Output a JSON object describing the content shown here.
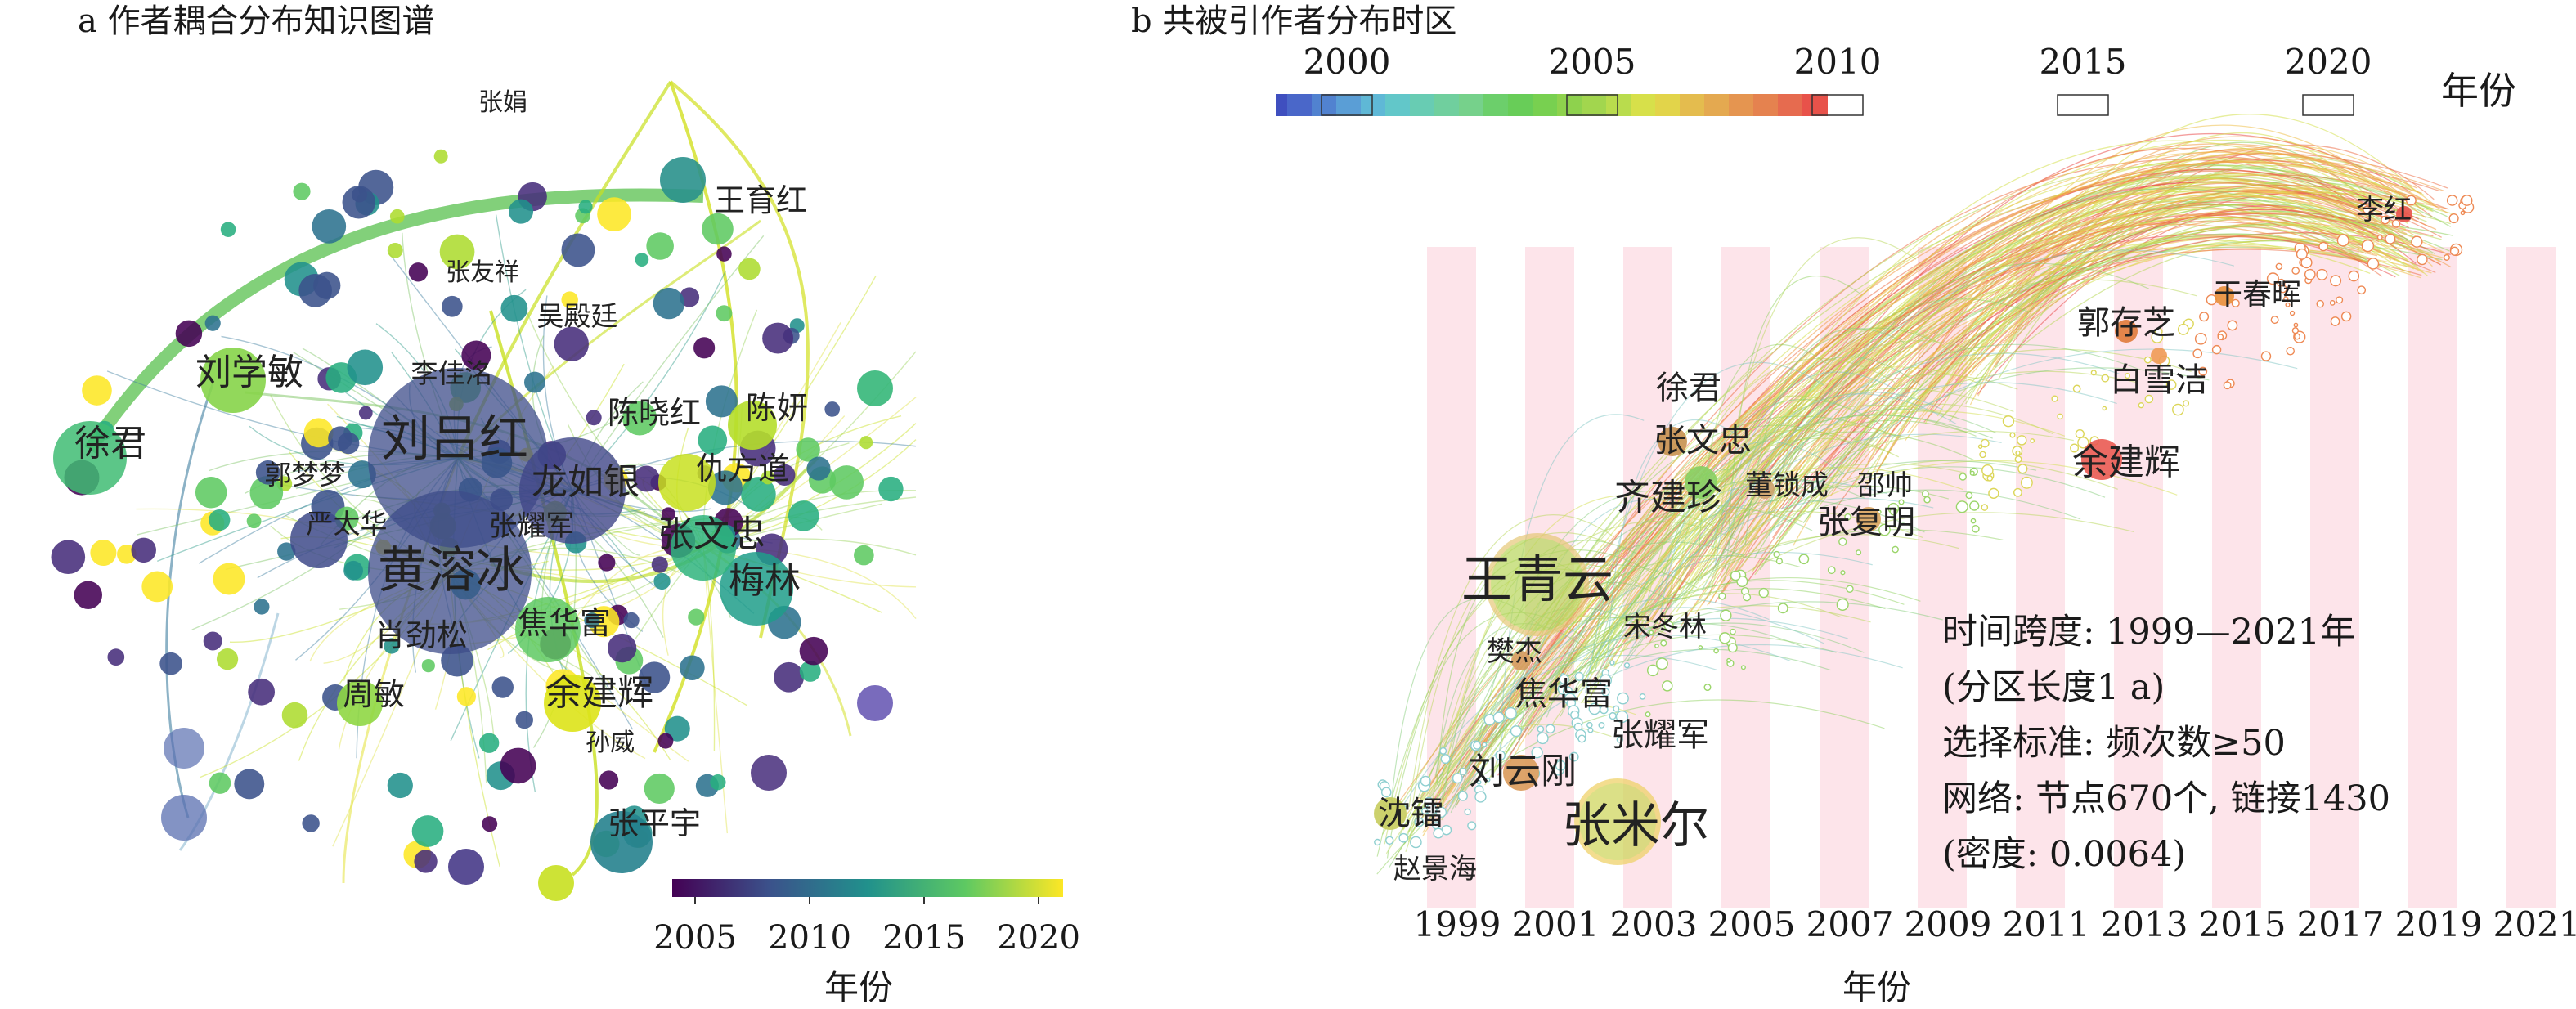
{
  "panel_a": {
    "title": "a 作者耦合分布知识图谱",
    "colorbar": {
      "ticks": [
        "2005",
        "2010",
        "2015",
        "2020"
      ],
      "label": "年份"
    },
    "nodes": [
      {
        "label": "张娟",
        "color": "#7fc94f"
      },
      {
        "label": "王育红",
        "color": "#2a918c"
      },
      {
        "label": "张友祥",
        "color": "#34608d"
      },
      {
        "label": "吴殿廷",
        "color": "#d9e21f"
      },
      {
        "label": "刘学敏",
        "color": "#86d449"
      },
      {
        "label": "李佳洺",
        "color": "#3d4c8a"
      },
      {
        "label": "陈晓红",
        "color": "#3b528b"
      },
      {
        "label": "陈妍",
        "color": "#b5de2b"
      },
      {
        "label": "徐君",
        "color": "#3fbc73"
      },
      {
        "label": "刘吕红",
        "color": "#3b528b"
      },
      {
        "label": "郭梦梦",
        "color": "#35b779"
      },
      {
        "label": "龙如银",
        "color": "#404688"
      },
      {
        "label": "仇方道",
        "color": "#c8e020"
      },
      {
        "label": "严太华",
        "color": "#3e4a89"
      },
      {
        "label": "张耀军",
        "color": "#31678e"
      },
      {
        "label": "张文忠",
        "color": "#2fb47c"
      },
      {
        "label": "黄溶冰",
        "color": "#3e4c8a"
      },
      {
        "label": "梅林",
        "color": "#1f9e89"
      },
      {
        "label": "肖劲松",
        "color": "#6ccd5a"
      },
      {
        "label": "焦华富",
        "color": "#5ec962"
      },
      {
        "label": "周敏",
        "color": "#8fd744"
      },
      {
        "label": "余建辉",
        "color": "#dde318"
      },
      {
        "label": "孙威",
        "color": "#e5e419"
      },
      {
        "label": "张平宇",
        "color": "#26828e"
      }
    ]
  },
  "panel_b": {
    "title": "b 共被引作者分布时区",
    "legend": {
      "ticks": [
        "2000",
        "2005",
        "2010",
        "2015",
        "2020"
      ],
      "label": "年份"
    },
    "x_axis": {
      "ticks": [
        "1999",
        "2001",
        "2003",
        "2005",
        "2007",
        "2009",
        "2011",
        "2013",
        "2015",
        "2017",
        "2019",
        "2021"
      ],
      "label": "年份"
    },
    "nodes": [
      {
        "label": "李红",
        "color": "#e8524a"
      },
      {
        "label": "干春晖",
        "color": "#e98f3a"
      },
      {
        "label": "郭存芝",
        "color": "#e07a3a"
      },
      {
        "label": "白雪洁",
        "color": "#ef9a55"
      },
      {
        "label": "徐君",
        "color": "#a6d75b"
      },
      {
        "label": "张文忠",
        "color": "#c6904f"
      },
      {
        "label": "余建辉",
        "color": "#ea5a52"
      },
      {
        "label": "董锁成",
        "color": "#7ecb5e"
      },
      {
        "label": "邵帅",
        "color": "#cba16a"
      },
      {
        "label": "齐建珍",
        "color": "#86cf63"
      },
      {
        "label": "张复明",
        "color": "#d8a45f"
      },
      {
        "label": "王青云",
        "color": "#b8d65c"
      },
      {
        "label": "宋冬林",
        "color": "#7ccb6c"
      },
      {
        "label": "樊杰",
        "color": "#d59a5e"
      },
      {
        "label": "焦华富",
        "color": "#8fcf5d"
      },
      {
        "label": "张耀军",
        "color": "#a3d262"
      },
      {
        "label": "刘云刚",
        "color": "#d99a5a"
      },
      {
        "label": "张米尔",
        "color": "#cfd65f"
      },
      {
        "label": "沈镭",
        "color": "#c6cc5d"
      },
      {
        "label": "赵景海",
        "color": "#9fcf6d"
      }
    ],
    "info": {
      "line1": "时间跨度: 1999—2021年",
      "line2": "(分区长度1 a)",
      "line3": "选择标准: 频次数≥50",
      "line4": "网络: 节点670个, 链接1430",
      "line5": "(密度: 0.0064)"
    }
  }
}
